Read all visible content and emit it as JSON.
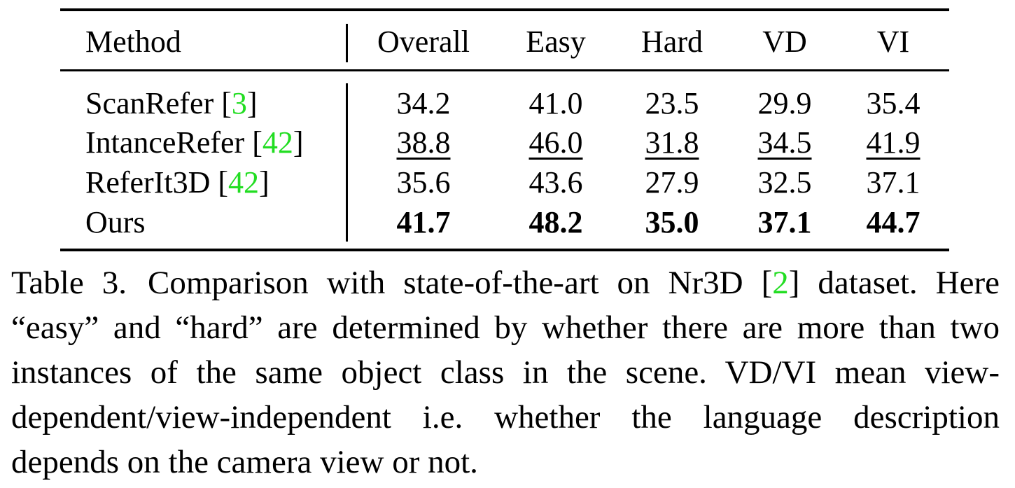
{
  "table": {
    "headers": [
      "Method",
      "Overall",
      "Easy",
      "Hard",
      "VD",
      "VI"
    ],
    "rows": [
      {
        "method": "ScanRefer",
        "cite": "3",
        "values": [
          "34.2",
          "41.0",
          "23.5",
          "29.9",
          "35.4"
        ],
        "style": "plain"
      },
      {
        "method": "IntanceRefer",
        "cite": "42",
        "values": [
          "38.8",
          "46.0",
          "31.8",
          "34.5",
          "41.9"
        ],
        "style": "underline"
      },
      {
        "method": "ReferIt3D",
        "cite": "42",
        "values": [
          "35.6",
          "43.6",
          "27.9",
          "32.5",
          "37.1"
        ],
        "style": "plain"
      },
      {
        "method": "Ours",
        "cite": "",
        "values": [
          "41.7",
          "48.2",
          "35.0",
          "37.1",
          "44.7"
        ],
        "style": "bold"
      }
    ]
  },
  "caption": {
    "label": "Table 3.",
    "text_before_cite": "Comparison with state-of-the-art on Nr3D [",
    "cite": "2",
    "text_after_cite": "] dataset. Here “easy” and “hard” are determined by whether there are more than two instances of the same object class in the scene. VD/VI mean view-dependent/view-independent i.e. whether the language description depends on the camera view or not."
  },
  "colors": {
    "citation": "#22dd22",
    "text": "#000000"
  }
}
